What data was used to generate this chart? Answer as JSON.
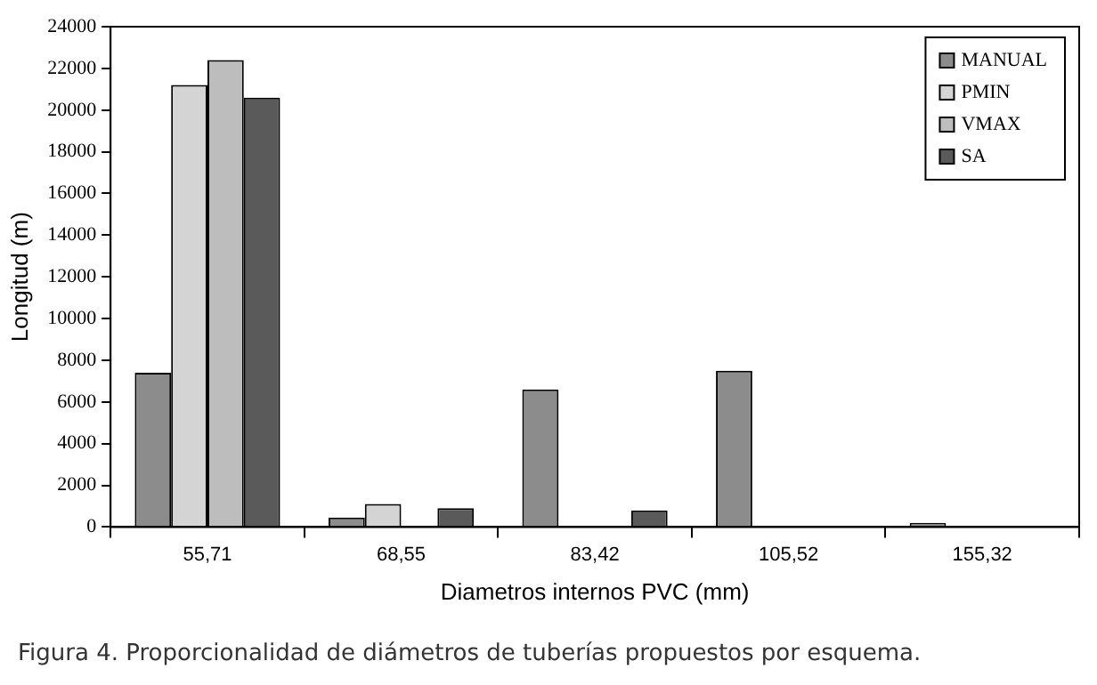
{
  "chart_data": {
    "type": "bar",
    "xlabel": "Diametros internos PVC (mm)",
    "ylabel": "Longitud (m)",
    "annotations": [
      "Figura 4. Proporcionalidad de diámetros de tuberías propuestos por esquema."
    ],
    "categories": [
      "55,71",
      "68,55",
      "83,42",
      "105,52",
      "155,32"
    ],
    "series": [
      {
        "name": "MANUAL",
        "color": "#8c8c8c",
        "values": [
          7400,
          450,
          6600,
          7500,
          200
        ]
      },
      {
        "name": "PMIN",
        "color": "#d4d4d4",
        "values": [
          21200,
          1100,
          0,
          0,
          0
        ]
      },
      {
        "name": "VMAX",
        "color": "#bdbdbd",
        "values": [
          22400,
          0,
          0,
          0,
          0
        ]
      },
      {
        "name": "SA",
        "color": "#5a5a5a",
        "values": [
          20600,
          900,
          800,
          0,
          0
        ]
      }
    ],
    "ylim": [
      0,
      24000
    ],
    "yticks": [
      0,
      2000,
      4000,
      6000,
      8000,
      10000,
      12000,
      14000,
      16000,
      18000,
      20000,
      22000,
      24000
    ],
    "grid": false,
    "legend": "top right"
  }
}
